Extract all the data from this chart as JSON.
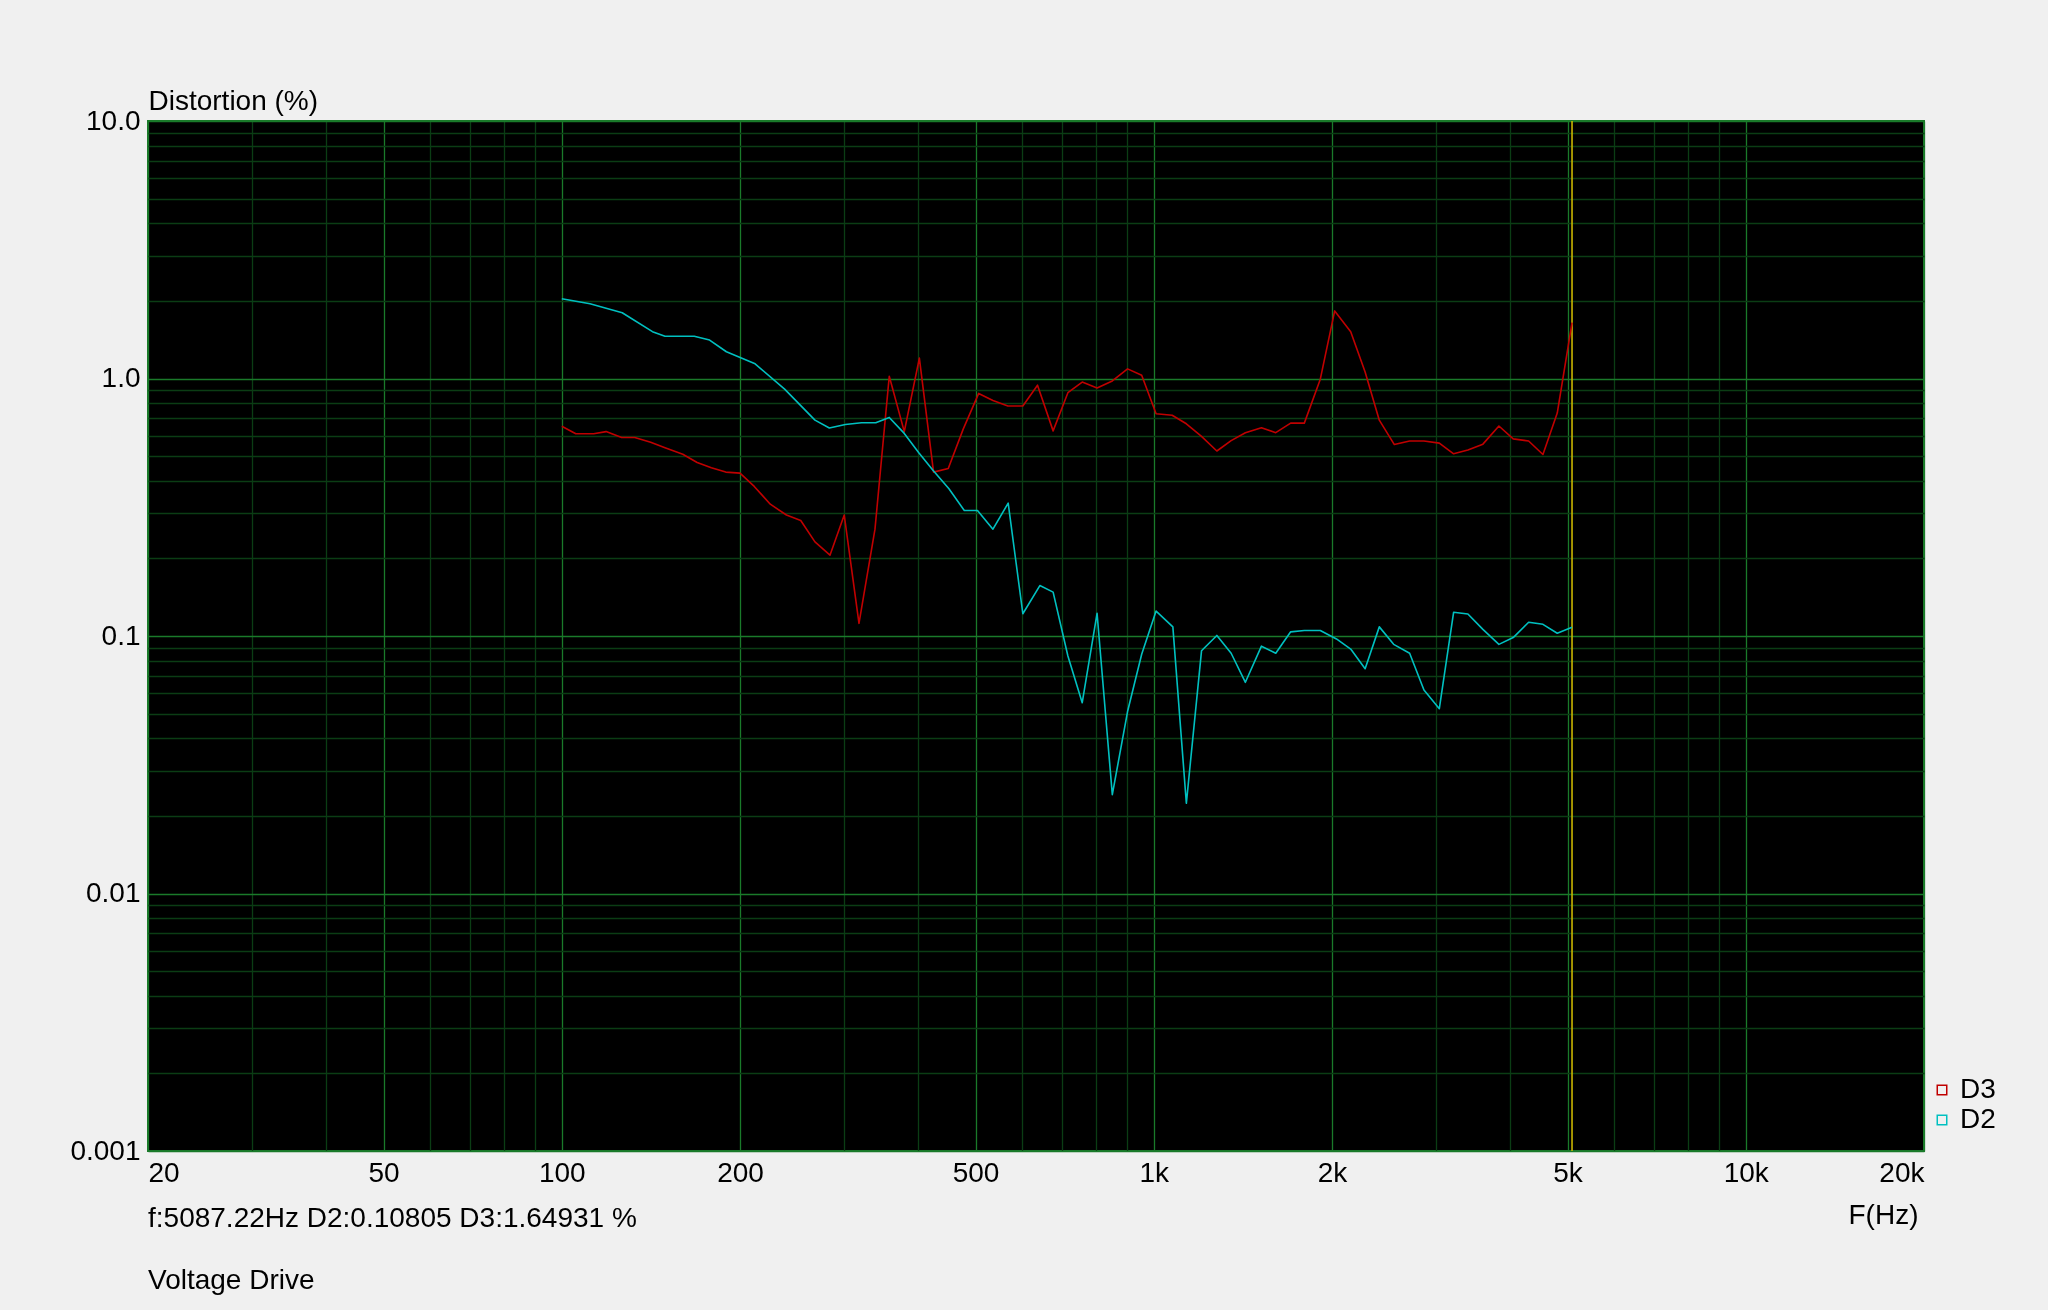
{
  "chart_data": {
    "type": "line",
    "ylabel": "Distortion (%)",
    "xlabel": "F(Hz)",
    "log": "xy",
    "grid": true,
    "legend": "bottom right",
    "xlim": [
      20,
      20000
    ],
    "ylim": [
      0.001,
      10
    ],
    "xticks": [
      20,
      {
        "value": 30,
        "label": null
      },
      {
        "value": 40,
        "label": null
      },
      50,
      {
        "value": 60,
        "label": null
      },
      {
        "value": 70,
        "label": null
      },
      {
        "value": 80,
        "label": null
      },
      {
        "value": 90,
        "label": null
      },
      100,
      200,
      {
        "value": 300,
        "label": null
      },
      {
        "value": 400,
        "label": null
      },
      500,
      {
        "value": 600,
        "label": null
      },
      {
        "value": 700,
        "label": null
      },
      {
        "value": 800,
        "label": null
      },
      {
        "value": 900,
        "label": null
      },
      {
        "value": 1000,
        "label": "1k"
      },
      {
        "value": 2000,
        "label": "2k"
      },
      {
        "value": 3000,
        "label": null
      },
      {
        "value": 4000,
        "label": null
      },
      {
        "value": 5000,
        "label": "5k"
      },
      {
        "value": 6000,
        "label": null
      },
      {
        "value": 7000,
        "label": null
      },
      {
        "value": 8000,
        "label": null
      },
      {
        "value": 9000,
        "label": null
      },
      {
        "value": 10000,
        "label": "10k"
      },
      {
        "value": 20000,
        "label": "20k"
      }
    ],
    "yticks": [
      {
        "value": 0.001,
        "label": "0.001"
      },
      {
        "value": 0.002,
        "label": null
      },
      {
        "value": 0.003,
        "label": null
      },
      {
        "value": 0.004,
        "label": null
      },
      {
        "value": 0.005,
        "label": null
      },
      {
        "value": 0.006,
        "label": null
      },
      {
        "value": 0.007,
        "label": null
      },
      {
        "value": 0.008,
        "label": null
      },
      {
        "value": 0.009,
        "label": null
      },
      {
        "value": 0.01,
        "label": "0.01"
      },
      {
        "value": 0.02,
        "label": null
      },
      {
        "value": 0.03,
        "label": null
      },
      {
        "value": 0.04,
        "label": null
      },
      {
        "value": 0.05,
        "label": null
      },
      {
        "value": 0.06,
        "label": null
      },
      {
        "value": 0.07,
        "label": null
      },
      {
        "value": 0.08,
        "label": null
      },
      {
        "value": 0.09,
        "label": null
      },
      {
        "value": 0.1,
        "label": "0.1"
      },
      {
        "value": 0.2,
        "label": null
      },
      {
        "value": 0.3,
        "label": null
      },
      {
        "value": 0.4,
        "label": null
      },
      {
        "value": 0.5,
        "label": null
      },
      {
        "value": 0.6,
        "label": null
      },
      {
        "value": 0.7,
        "label": null
      },
      {
        "value": 0.8,
        "label": null
      },
      {
        "value": 0.9,
        "label": null
      },
      {
        "value": 1,
        "label": "1.0"
      },
      {
        "value": 2,
        "label": null
      },
      {
        "value": 3,
        "label": null
      },
      {
        "value": 4,
        "label": null
      },
      {
        "value": 5,
        "label": null
      },
      {
        "value": 6,
        "label": null
      },
      {
        "value": 7,
        "label": null
      },
      {
        "value": 8,
        "label": null
      },
      {
        "value": 9,
        "label": null
      },
      {
        "value": 10,
        "label": "10.0"
      }
    ],
    "series": [
      {
        "name": "D3",
        "color": "#c00000",
        "x": [
          100,
          105.6,
          113.2,
          118.8,
          126.2,
          132.8,
          141.3,
          149.4,
          160.1,
          169.3,
          178.9,
          189.2,
          200,
          211.4,
          225,
          239.6,
          253.3,
          267.7,
          283.8,
          300,
          317.7,
          338.1,
          357.4,
          378.9,
          401.8,
          424.6,
          449.6,
          476.5,
          506.1,
          534.9,
          566.9,
          600.9,
          636.2,
          676,
          716,
          757,
          802,
          851,
          903,
          954,
          1009,
          1074,
          1135,
          1204,
          1278,
          1351,
          1428,
          1520,
          1607,
          1703,
          1796,
          1911,
          2021,
          2151,
          2275,
          2404,
          2549,
          2705,
          2860,
          3036,
          3210,
          3393,
          3597,
          3828,
          4047,
          4297,
          4543,
          4803,
          5087.22
        ],
        "values": [
          0.652,
          0.61,
          0.61,
          0.622,
          0.59,
          0.59,
          0.565,
          0.538,
          0.508,
          0.472,
          0.45,
          0.433,
          0.429,
          0.381,
          0.325,
          0.295,
          0.281,
          0.232,
          0.206,
          0.295,
          0.112,
          0.26,
          1.02,
          0.622,
          1.2,
          0.433,
          0.447,
          0.636,
          0.875,
          0.821,
          0.782,
          0.782,
          0.942,
          0.626,
          0.881,
          0.969,
          0.918,
          0.978,
          1.09,
          1.03,
          0.73,
          0.72,
          0.667,
          0.596,
          0.523,
          0.574,
          0.616,
          0.644,
          0.616,
          0.671,
          0.671,
          0.994,
          1.83,
          1.52,
          1.06,
          0.689,
          0.554,
          0.572,
          0.572,
          0.561,
          0.51,
          0.528,
          0.556,
          0.654,
          0.583,
          0.572,
          0.507,
          0.734,
          1.64931
        ]
      },
      {
        "name": "D2",
        "color": "#00c0c0",
        "x": [
          100,
          111.6,
          126.5,
          142.3,
          149.4,
          167.4,
          177.7,
          189.7,
          212.1,
          237.9,
          267.7,
          283.1,
          301.3,
          320.8,
          339.1,
          357.4,
          378.9,
          400.6,
          423.6,
          450.8,
          478.6,
          503.7,
          534.9,
          567.6,
          600.9,
          642,
          676,
          716,
          757,
          802,
          851,
          903,
          954,
          1009,
          1077,
          1135,
          1204,
          1278,
          1351,
          1428,
          1520,
          1607,
          1703,
          1796,
          1911,
          2035,
          2151,
          2275,
          2404,
          2542,
          2705,
          2860,
          3036,
          3210,
          3393,
          3597,
          3828,
          4047,
          4297,
          4543,
          4803,
          5087.22
        ],
        "values": [
          2.04,
          1.95,
          1.8,
          1.52,
          1.46,
          1.46,
          1.41,
          1.27,
          1.14,
          0.909,
          0.689,
          0.642,
          0.663,
          0.673,
          0.673,
          0.706,
          0.612,
          0.516,
          0.44,
          0.373,
          0.307,
          0.307,
          0.26,
          0.328,
          0.122,
          0.157,
          0.148,
          0.0836,
          0.0551,
          0.1225,
          0.0242,
          0.0509,
          0.0849,
          0.125,
          0.1085,
          0.0224,
          0.0876,
          0.1005,
          0.0857,
          0.0661,
          0.0913,
          0.0857,
          0.1038,
          0.105,
          0.105,
          0.0974,
          0.089,
          0.0746,
          0.1085,
          0.0928,
          0.0857,
          0.0617,
          0.0522,
          0.1237,
          0.1218,
          0.1061,
          0.0928,
          0.0986,
          0.1131,
          0.111,
          0.1025,
          0.10805
        ]
      }
    ],
    "ref_lines": [
      {
        "axis": "x",
        "value": 5087.22,
        "color": "#c8b400"
      }
    ],
    "annotations": [
      "f:5087.22Hz   D2:0.10805   D3:1.64931 %",
      "Voltage Drive"
    ]
  }
}
